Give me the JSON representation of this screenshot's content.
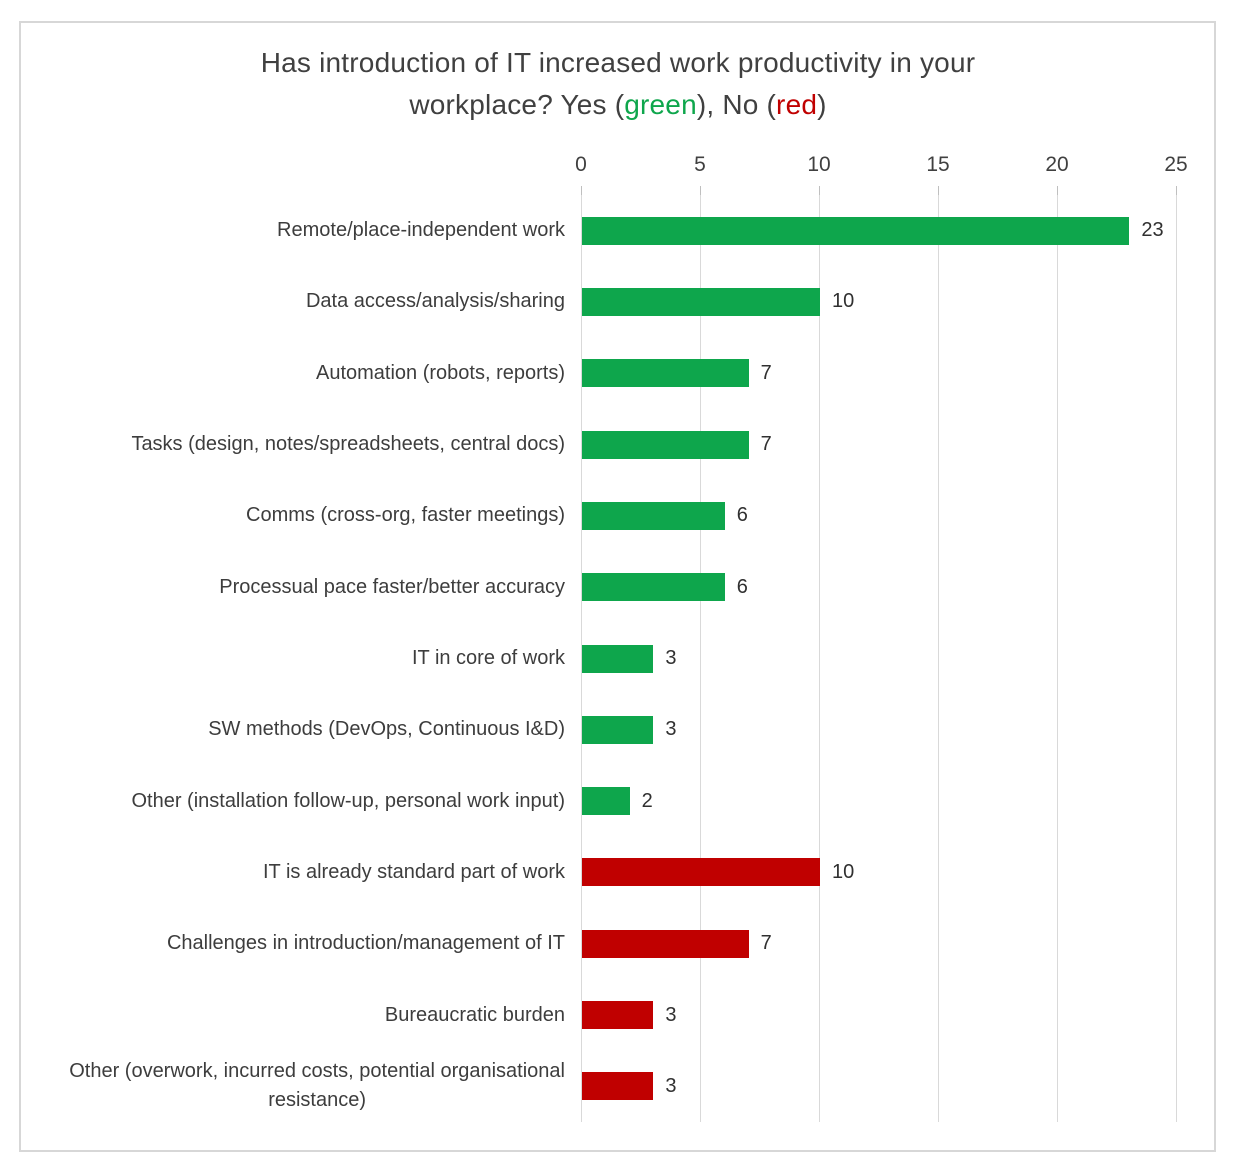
{
  "title": {
    "line1": "Has introduction of IT increased work productivity in your",
    "line2_prefix": "workplace? Yes (",
    "green_word": "green",
    "line2_mid": "), No (",
    "red_word": "red",
    "line2_suffix": ")"
  },
  "colors": {
    "green": "#0ea64c",
    "red": "#c00000",
    "gridline": "#d9d9d9",
    "tick": "#bfbfbf",
    "text": "#404040"
  },
  "chart_data": {
    "type": "bar",
    "orientation": "horizontal",
    "title": "Has introduction of IT increased work productivity in your workplace? Yes (green), No (red)",
    "xlabel": "",
    "ylabel": "",
    "xlim": [
      0,
      25
    ],
    "x_ticks": [
      0,
      5,
      10,
      15,
      20,
      25
    ],
    "grid": true,
    "legend": {
      "yes_color_name": "green",
      "no_color_name": "red"
    },
    "items": [
      {
        "label": "Remote/place-independent work",
        "value": 23,
        "group": "yes"
      },
      {
        "label": "Data access/analysis/sharing",
        "value": 10,
        "group": "yes"
      },
      {
        "label": "Automation (robots, reports)",
        "value": 7,
        "group": "yes"
      },
      {
        "label": "Tasks (design, notes/spreadsheets, central docs)",
        "value": 7,
        "group": "yes"
      },
      {
        "label": "Comms (cross-org, faster meetings)",
        "value": 6,
        "group": "yes"
      },
      {
        "label": "Processual pace faster/better accuracy",
        "value": 6,
        "group": "yes"
      },
      {
        "label": "IT in core of work",
        "value": 3,
        "group": "yes"
      },
      {
        "label": "SW methods (DevOps, Continuous I&D)",
        "value": 3,
        "group": "yes"
      },
      {
        "label": "Other (installation follow-up, personal work input)",
        "value": 2,
        "group": "yes"
      },
      {
        "label": "IT is already standard part of work",
        "value": 10,
        "group": "no"
      },
      {
        "label": "Challenges in introduction/management of IT",
        "value": 7,
        "group": "no"
      },
      {
        "label": "Bureaucratic burden",
        "value": 3,
        "group": "no"
      },
      {
        "label": "Other (overwork, incurred costs, potential organisational\nresistance)",
        "value": 3,
        "group": "no"
      }
    ]
  }
}
